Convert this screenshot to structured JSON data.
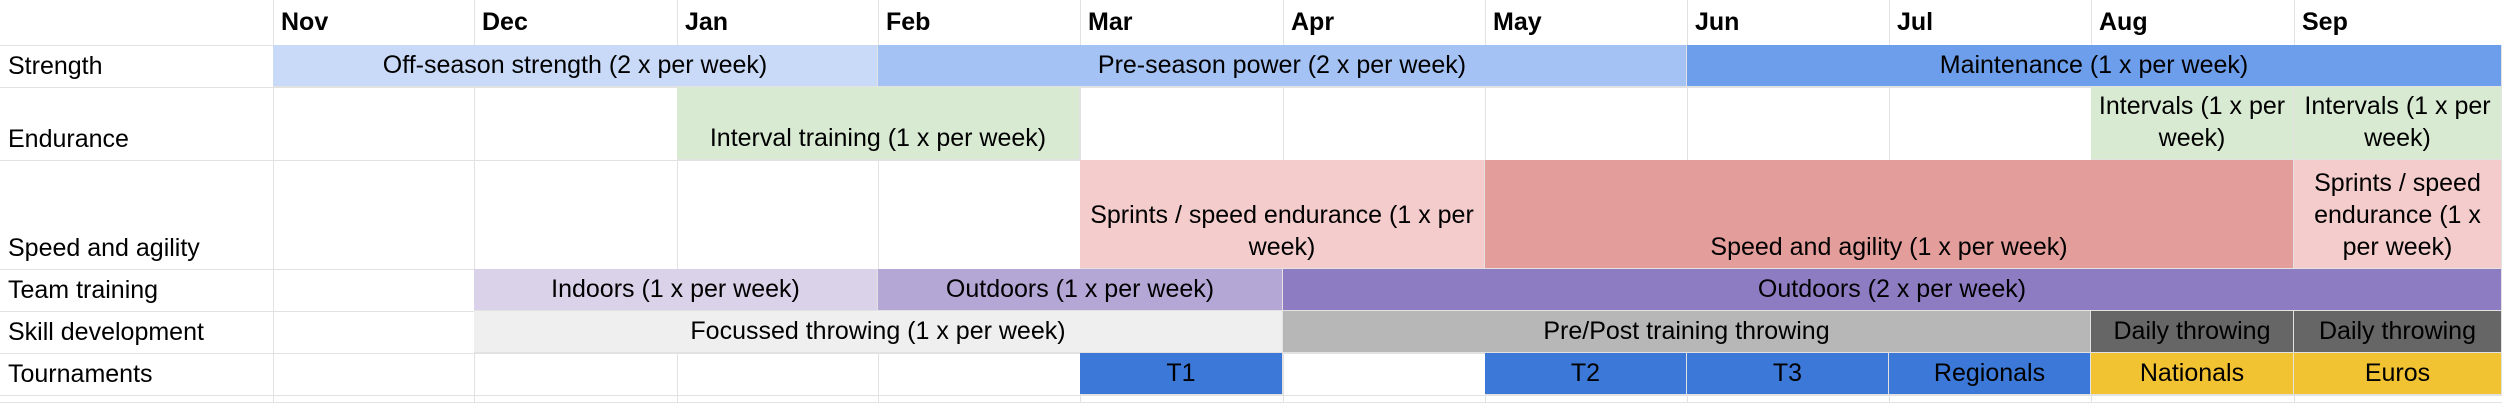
{
  "months": [
    "Nov",
    "Dec",
    "Jan",
    "Feb",
    "Mar",
    "Apr",
    "May",
    "Jun",
    "Jul",
    "Aug",
    "Sep"
  ],
  "rows": [
    "Strength",
    "Endurance",
    "Speed and agility",
    "Team training",
    "Skill development",
    "Tournaments"
  ],
  "colors": {
    "strength_offseason": "#c9daf8",
    "strength_preseason": "#a4c2f4",
    "strength_maintenance": "#6d9eeb",
    "endurance": "#d9ead3",
    "speed_light": "#f4cccc",
    "speed_dark": "#e39d9a",
    "team_indoors": "#d9d2e9",
    "team_outdoors_1": "#b4a7d6",
    "team_outdoors_2": "#8e7cc3",
    "skill_light": "#efefef",
    "skill_mid": "#b7b7b7",
    "skill_dark": "#666666",
    "tournament_blue": "#3c78d8",
    "tournament_gold": "#f1c232"
  },
  "blocks": [
    {
      "row": 0,
      "start": 0,
      "end": 3,
      "color": "strength_offseason",
      "text": "Off-season strength (2 x per week)"
    },
    {
      "row": 0,
      "start": 3,
      "end": 7,
      "color": "strength_preseason",
      "text": "Pre-season power (2 x per week)"
    },
    {
      "row": 0,
      "start": 7,
      "end": 11,
      "color": "strength_maintenance",
      "text": "Maintenance (1 x per week)"
    },
    {
      "row": 1,
      "start": 2,
      "end": 4,
      "color": "endurance",
      "text": "Interval training (1 x per week)"
    },
    {
      "row": 1,
      "start": 9,
      "end": 10,
      "color": "endurance",
      "text": "Intervals (1 x per week)"
    },
    {
      "row": 1,
      "start": 10,
      "end": 11,
      "color": "endurance",
      "text": "Intervals (1 x per week)"
    },
    {
      "row": 2,
      "start": 4,
      "end": 6,
      "color": "speed_light",
      "text": "Sprints / speed endurance (1 x per week)"
    },
    {
      "row": 2,
      "start": 6,
      "end": 10,
      "color": "speed_dark",
      "text": "Speed and agility (1 x per week)"
    },
    {
      "row": 2,
      "start": 10,
      "end": 11,
      "color": "speed_light",
      "text": "Sprints / speed endurance (1 x per week)"
    },
    {
      "row": 3,
      "start": 1,
      "end": 3,
      "color": "team_indoors",
      "text": "Indoors (1 x per week)"
    },
    {
      "row": 3,
      "start": 3,
      "end": 5,
      "color": "team_outdoors_1",
      "text": "Outdoors (1 x per week)"
    },
    {
      "row": 3,
      "start": 5,
      "end": 11,
      "color": "team_outdoors_2",
      "text": "Outdoors (2 x per week)"
    },
    {
      "row": 4,
      "start": 1,
      "end": 5,
      "color": "skill_light",
      "text": "Focussed throwing (1 x per week)"
    },
    {
      "row": 4,
      "start": 5,
      "end": 9,
      "color": "skill_mid",
      "text": "Pre/Post training throwing"
    },
    {
      "row": 4,
      "start": 9,
      "end": 10,
      "color": "skill_dark",
      "text": "Daily throwing"
    },
    {
      "row": 4,
      "start": 10,
      "end": 11,
      "color": "skill_dark",
      "text": "Daily throwing"
    },
    {
      "row": 5,
      "start": 4,
      "end": 5,
      "color": "tournament_blue",
      "text": "T1"
    },
    {
      "row": 5,
      "start": 6,
      "end": 7,
      "color": "tournament_blue",
      "text": "T2"
    },
    {
      "row": 5,
      "start": 7,
      "end": 8,
      "color": "tournament_blue",
      "text": "T3"
    },
    {
      "row": 5,
      "start": 8,
      "end": 9,
      "color": "tournament_blue",
      "text": "Regionals"
    },
    {
      "row": 5,
      "start": 9,
      "end": 10,
      "color": "tournament_gold",
      "text": "Nationals"
    },
    {
      "row": 5,
      "start": 10,
      "end": 11,
      "color": "tournament_gold",
      "text": "Euros"
    }
  ]
}
